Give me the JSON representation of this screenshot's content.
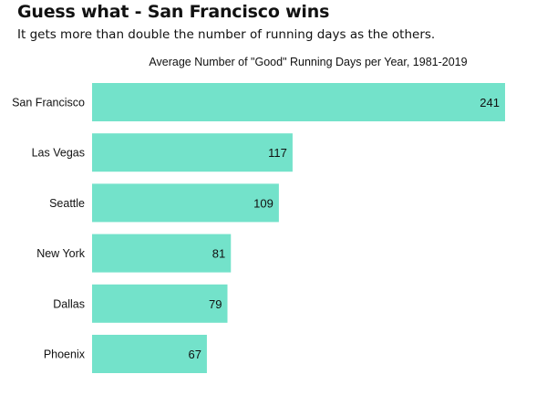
{
  "header": {
    "title": "Guess what - San Francisco wins",
    "subtitle": "It gets more than double the number of running days as the others."
  },
  "colors": {
    "bar": "#73E2CA",
    "text": "#111111",
    "background": "#ffffff"
  },
  "chart_data": {
    "type": "bar",
    "orientation": "horizontal",
    "title": "Average Number of \"Good\" Running Days per Year, 1981-2019",
    "categories": [
      "San Francisco",
      "Las Vegas",
      "Seattle",
      "New York",
      "Dallas",
      "Phoenix"
    ],
    "values": [
      241,
      117,
      109,
      81,
      79,
      67
    ],
    "data_labels": [
      "241",
      "117",
      "109",
      "81",
      "79",
      "67"
    ],
    "xlabel": "",
    "ylabel": "",
    "xlim": [
      0,
      241
    ],
    "grid": false,
    "legend": "none"
  }
}
